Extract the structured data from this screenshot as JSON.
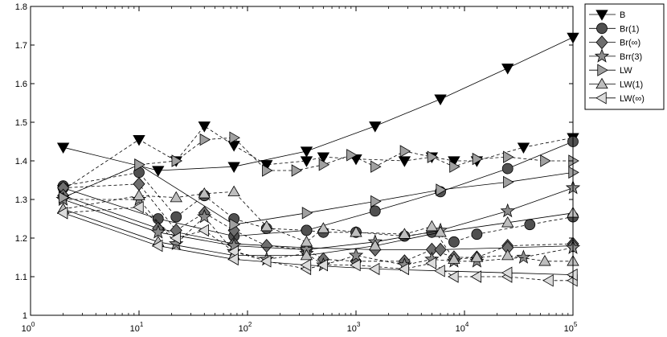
{
  "chart_data": {
    "type": "line",
    "title": "",
    "xlabel": "",
    "ylabel": "",
    "x_scale": "log",
    "xlim": [
      1,
      100000
    ],
    "ylim": [
      1,
      1.8
    ],
    "x_ticks": [
      {
        "value": 1,
        "base": "10",
        "exp": "0"
      },
      {
        "value": 10,
        "base": "10",
        "exp": "1"
      },
      {
        "value": 100,
        "base": "10",
        "exp": "2"
      },
      {
        "value": 1000,
        "base": "10",
        "exp": "3"
      },
      {
        "value": 10000,
        "base": "10",
        "exp": "4"
      },
      {
        "value": 100000,
        "base": "10",
        "exp": "5"
      }
    ],
    "y_ticks": [
      {
        "value": 1,
        "label": "1"
      },
      {
        "value": 1.1,
        "label": "1.1"
      },
      {
        "value": 1.2,
        "label": "1.2"
      },
      {
        "value": 1.3,
        "label": "1.3"
      },
      {
        "value": 1.4,
        "label": "1.4"
      },
      {
        "value": 1.5,
        "label": "1.5"
      },
      {
        "value": 1.6,
        "label": "1.6"
      },
      {
        "value": 1.7,
        "label": "1.7"
      },
      {
        "value": 1.8,
        "label": "1.8"
      }
    ],
    "grid": false,
    "legend_position": "outside-top-right",
    "series": [
      {
        "name": "B",
        "marker": "triangle-down",
        "color": "#000000",
        "solid_x": [
          2,
          15,
          75,
          350,
          1500,
          6000,
          25000,
          100000
        ],
        "solid_y": [
          1.435,
          1.375,
          1.385,
          1.425,
          1.49,
          1.56,
          1.64,
          1.72
        ],
        "dashed_x": [
          2,
          10,
          22,
          40,
          75,
          150,
          350,
          500,
          1000,
          2800,
          5000,
          8000,
          13000,
          35000,
          100000
        ],
        "dashed_y": [
          1.325,
          1.455,
          1.4,
          1.49,
          1.44,
          1.39,
          1.4,
          1.41,
          1.405,
          1.4,
          1.41,
          1.4,
          1.4,
          1.435,
          1.46
        ]
      },
      {
        "name": "Br(1)",
        "marker": "circle",
        "color": "#505050",
        "solid_x": [
          2,
          15,
          75,
          350,
          1500,
          6000,
          25000,
          100000
        ],
        "solid_y": [
          1.33,
          1.25,
          1.205,
          1.22,
          1.27,
          1.32,
          1.38,
          1.45
        ],
        "dashed_x": [
          2,
          10,
          22,
          40,
          75,
          150,
          350,
          500,
          1000,
          2800,
          5000,
          8000,
          13000,
          40000,
          100000
        ],
        "dashed_y": [
          1.335,
          1.37,
          1.255,
          1.31,
          1.25,
          1.225,
          1.22,
          1.215,
          1.215,
          1.205,
          1.215,
          1.19,
          1.21,
          1.235,
          1.255
        ]
      },
      {
        "name": "Br(∞)",
        "marker": "diamond",
        "color": "#6e6e6e",
        "solid_x": [
          2,
          15,
          75,
          350,
          1500,
          6000,
          25000,
          100000
        ],
        "solid_y": [
          1.31,
          1.225,
          1.185,
          1.175,
          1.17,
          1.17,
          1.175,
          1.18
        ],
        "dashed_x": [
          2,
          10,
          22,
          40,
          75,
          150,
          350,
          500,
          1000,
          2800,
          5000,
          8000,
          13000,
          25000,
          100000
        ],
        "dashed_y": [
          1.33,
          1.34,
          1.22,
          1.265,
          1.22,
          1.18,
          1.17,
          1.145,
          1.14,
          1.14,
          1.17,
          1.15,
          1.15,
          1.18,
          1.185
        ]
      },
      {
        "name": "Brr(3)",
        "marker": "star",
        "color": "#8c8c8c",
        "solid_x": [
          2,
          15,
          75,
          350,
          1500,
          6000,
          25000,
          100000
        ],
        "solid_y": [
          1.3,
          1.215,
          1.18,
          1.17,
          1.19,
          1.22,
          1.27,
          1.33
        ],
        "dashed_x": [
          2,
          10,
          22,
          40,
          75,
          150,
          350,
          500,
          1000,
          2800,
          5000,
          8000,
          13000,
          35000,
          100000
        ],
        "dashed_y": [
          1.3,
          1.3,
          1.185,
          1.255,
          1.165,
          1.145,
          1.16,
          1.13,
          1.155,
          1.13,
          1.145,
          1.14,
          1.14,
          1.15,
          1.175
        ]
      },
      {
        "name": "LW",
        "marker": "triangle-right",
        "color": "#a0a0a0",
        "solid_x": [
          2,
          10,
          75,
          350,
          1500,
          6000,
          25000,
          100000
        ],
        "solid_y": [
          1.305,
          1.39,
          1.235,
          1.265,
          1.295,
          1.325,
          1.345,
          1.37
        ],
        "dashed_x": [
          2,
          10,
          22,
          40,
          75,
          150,
          280,
          500,
          900,
          1500,
          2800,
          5000,
          8000,
          13000,
          25000,
          55000,
          100000
        ],
        "dashed_y": [
          1.305,
          1.39,
          1.4,
          1.455,
          1.46,
          1.375,
          1.375,
          1.39,
          1.415,
          1.385,
          1.425,
          1.41,
          1.385,
          1.405,
          1.41,
          1.4,
          1.4
        ]
      },
      {
        "name": "LW(1)",
        "marker": "triangle-up",
        "color": "#bebebe",
        "solid_x": [
          2,
          15,
          75,
          350,
          1500,
          6000,
          25000,
          100000
        ],
        "solid_y": [
          1.275,
          1.19,
          1.155,
          1.155,
          1.18,
          1.215,
          1.24,
          1.265
        ],
        "dashed_x": [
          2,
          10,
          22,
          40,
          75,
          150,
          350,
          500,
          1000,
          2800,
          5000,
          8000,
          13000,
          25000,
          55000,
          100000
        ],
        "dashed_y": [
          1.275,
          1.31,
          1.305,
          1.315,
          1.32,
          1.23,
          1.19,
          1.225,
          1.215,
          1.21,
          1.23,
          1.145,
          1.15,
          1.155,
          1.14,
          1.14
        ]
      },
      {
        "name": "LW(∞)",
        "marker": "triangle-left",
        "color": "#dcdcdc",
        "solid_x": [
          2,
          15,
          75,
          350,
          1500,
          6000,
          25000,
          100000
        ],
        "solid_y": [
          1.265,
          1.18,
          1.145,
          1.13,
          1.12,
          1.115,
          1.11,
          1.105
        ],
        "dashed_x": [
          2,
          10,
          22,
          40,
          75,
          150,
          350,
          500,
          1000,
          2800,
          5000,
          8000,
          13000,
          25000,
          60000,
          100000
        ],
        "dashed_y": [
          1.265,
          1.28,
          1.2,
          1.22,
          1.165,
          1.14,
          1.12,
          1.13,
          1.13,
          1.12,
          1.135,
          1.1,
          1.1,
          1.1,
          1.09,
          1.09
        ]
      }
    ]
  }
}
